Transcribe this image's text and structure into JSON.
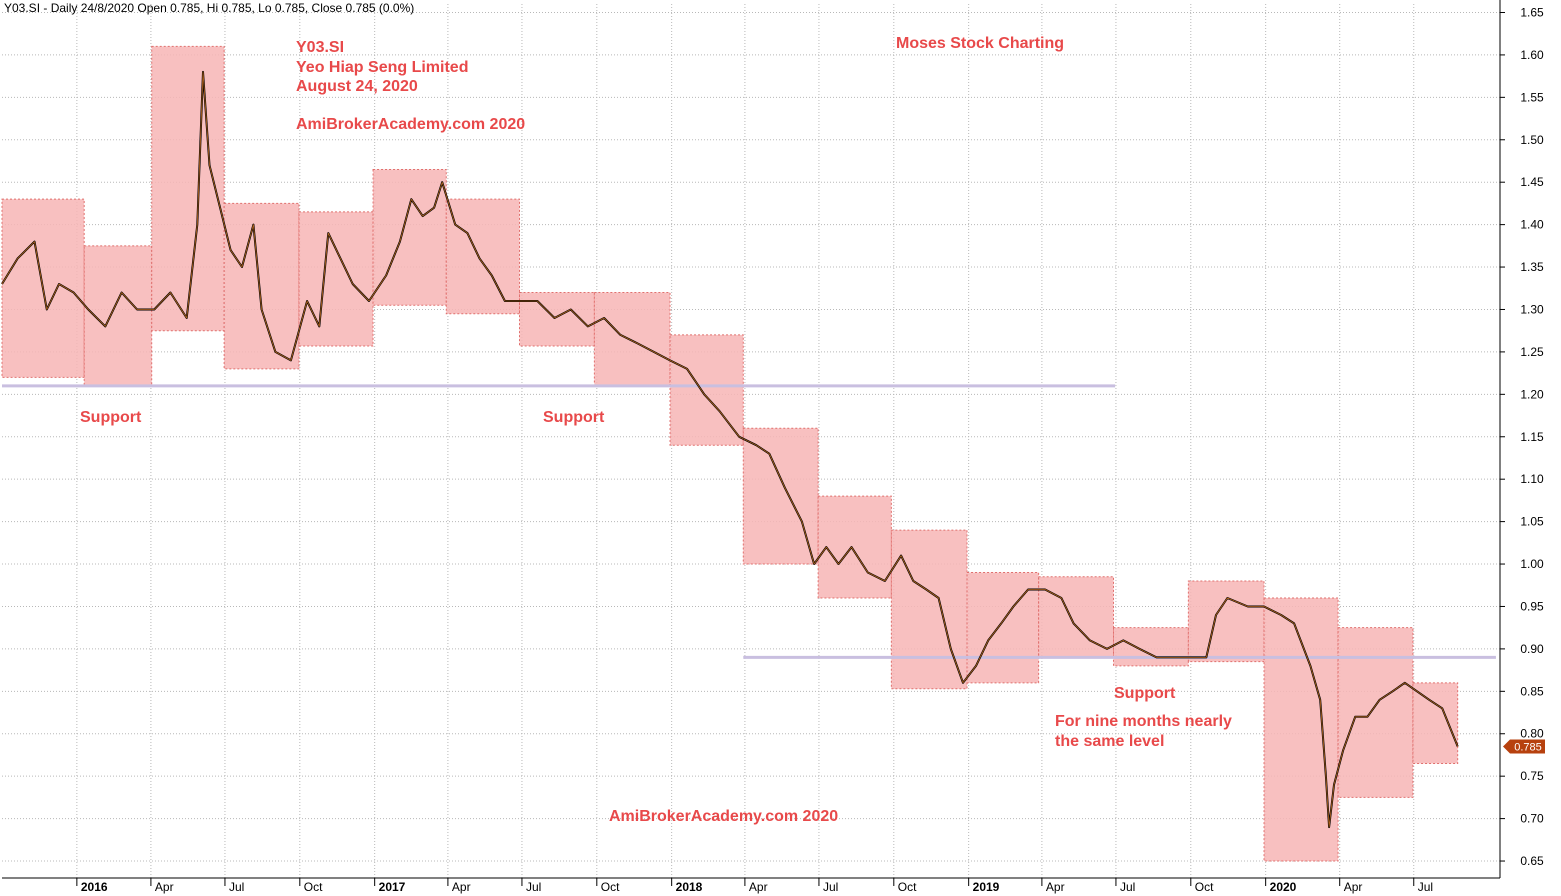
{
  "header": "Y03.SI - Daily 24/8/2020 Open 0.785, Hi 0.785, Lo 0.785, Close 0.785 (0.0%)",
  "annotations": {
    "symbol": "Y03.SI",
    "company": "Yeo Hiap Seng Limited",
    "date": "August 24, 2020",
    "site_top": "AmiBrokerAcademy.com  2020",
    "brand": "Moses Stock Charting",
    "support_1": "Support",
    "support_2": "Support",
    "support_3": "Support",
    "note_line1": "For nine months nearly",
    "note_line2": "the same level",
    "site_bottom": "AmiBrokerAcademy.com  2020"
  },
  "last_price_label": "0.785",
  "colors": {
    "box_fill": "#f7b5b5",
    "box_border": "#e0706e",
    "support_line": "#c9bfe0",
    "grid": "#b8b8b8",
    "annotation": "#e8494a",
    "price_tag": "#b7410e",
    "candle_up": "#b5651d",
    "candle_down": "#000000"
  },
  "chart_data": {
    "type": "line",
    "symbol": "Y03.SI",
    "y_axis": {
      "position": "right",
      "range": [
        0.63,
        1.66
      ],
      "ticks": [
        "1.65",
        "1.60",
        "1.55",
        "1.50",
        "1.45",
        "1.40",
        "1.35",
        "1.30",
        "1.25",
        "1.20",
        "1.15",
        "1.10",
        "1.05",
        "1.00",
        "0.95",
        "0.90",
        "0.85",
        "0.80",
        "0.75",
        "0.70",
        "0.65"
      ]
    },
    "x_axis": {
      "range": [
        "2015-10-01",
        "2020-10-15"
      ],
      "year_ticks": [
        {
          "date": "2016-01-01",
          "label": "2016"
        },
        {
          "date": "2017-01-01",
          "label": "2017"
        },
        {
          "date": "2018-01-01",
          "label": "2018"
        },
        {
          "date": "2019-01-01",
          "label": "2019"
        },
        {
          "date": "2020-01-01",
          "label": "2020"
        }
      ],
      "month_ticks": [
        {
          "date": "2016-04-01",
          "label": "Apr"
        },
        {
          "date": "2016-07-01",
          "label": "Jul"
        },
        {
          "date": "2016-10-01",
          "label": "Oct"
        },
        {
          "date": "2017-04-01",
          "label": "Apr"
        },
        {
          "date": "2017-07-01",
          "label": "Jul"
        },
        {
          "date": "2017-10-01",
          "label": "Oct"
        },
        {
          "date": "2018-04-01",
          "label": "Apr"
        },
        {
          "date": "2018-07-01",
          "label": "Jul"
        },
        {
          "date": "2018-10-01",
          "label": "Oct"
        },
        {
          "date": "2019-04-01",
          "label": "Apr"
        },
        {
          "date": "2019-07-01",
          "label": "Jul"
        },
        {
          "date": "2019-10-01",
          "label": "Oct"
        },
        {
          "date": "2020-04-01",
          "label": "Apr"
        },
        {
          "date": "2020-07-01",
          "label": "Jul"
        }
      ]
    },
    "grid": true,
    "price_series": [
      [
        "2015-10-01",
        1.33
      ],
      [
        "2015-10-20",
        1.36
      ],
      [
        "2015-11-10",
        1.38
      ],
      [
        "2015-11-25",
        1.3
      ],
      [
        "2015-12-10",
        1.33
      ],
      [
        "2015-12-28",
        1.32
      ],
      [
        "2016-01-15",
        1.3
      ],
      [
        "2016-02-05",
        1.28
      ],
      [
        "2016-02-25",
        1.32
      ],
      [
        "2016-03-15",
        1.3
      ],
      [
        "2016-04-05",
        1.3
      ],
      [
        "2016-04-25",
        1.32
      ],
      [
        "2016-05-15",
        1.29
      ],
      [
        "2016-05-28",
        1.4
      ],
      [
        "2016-06-04",
        1.58
      ],
      [
        "2016-06-12",
        1.47
      ],
      [
        "2016-06-25",
        1.42
      ],
      [
        "2016-07-08",
        1.37
      ],
      [
        "2016-07-22",
        1.35
      ],
      [
        "2016-08-05",
        1.4
      ],
      [
        "2016-08-15",
        1.3
      ],
      [
        "2016-09-01",
        1.25
      ],
      [
        "2016-09-20",
        1.24
      ],
      [
        "2016-10-10",
        1.31
      ],
      [
        "2016-10-25",
        1.28
      ],
      [
        "2016-11-05",
        1.39
      ],
      [
        "2016-11-20",
        1.36
      ],
      [
        "2016-12-05",
        1.33
      ],
      [
        "2016-12-25",
        1.31
      ],
      [
        "2017-01-15",
        1.34
      ],
      [
        "2017-02-01",
        1.38
      ],
      [
        "2017-02-15",
        1.43
      ],
      [
        "2017-03-01",
        1.41
      ],
      [
        "2017-03-15",
        1.42
      ],
      [
        "2017-03-25",
        1.45
      ],
      [
        "2017-04-10",
        1.4
      ],
      [
        "2017-04-25",
        1.39
      ],
      [
        "2017-05-10",
        1.36
      ],
      [
        "2017-05-25",
        1.34
      ],
      [
        "2017-06-10",
        1.31
      ],
      [
        "2017-06-28",
        1.31
      ],
      [
        "2017-07-20",
        1.31
      ],
      [
        "2017-08-10",
        1.29
      ],
      [
        "2017-08-30",
        1.3
      ],
      [
        "2017-09-20",
        1.28
      ],
      [
        "2017-10-10",
        1.29
      ],
      [
        "2017-10-30",
        1.27
      ],
      [
        "2017-11-20",
        1.26
      ],
      [
        "2017-12-10",
        1.25
      ],
      [
        "2017-12-30",
        1.24
      ],
      [
        "2018-01-20",
        1.23
      ],
      [
        "2018-02-10",
        1.2
      ],
      [
        "2018-03-01",
        1.18
      ],
      [
        "2018-03-25",
        1.15
      ],
      [
        "2018-04-15",
        1.14
      ],
      [
        "2018-05-01",
        1.13
      ],
      [
        "2018-05-20",
        1.09
      ],
      [
        "2018-06-10",
        1.05
      ],
      [
        "2018-06-25",
        1.0
      ],
      [
        "2018-07-10",
        1.02
      ],
      [
        "2018-07-25",
        1.0
      ],
      [
        "2018-08-10",
        1.02
      ],
      [
        "2018-08-30",
        0.99
      ],
      [
        "2018-09-20",
        0.98
      ],
      [
        "2018-10-10",
        1.01
      ],
      [
        "2018-10-25",
        0.98
      ],
      [
        "2018-11-10",
        0.97
      ],
      [
        "2018-11-25",
        0.96
      ],
      [
        "2018-12-10",
        0.9
      ],
      [
        "2018-12-25",
        0.86
      ],
      [
        "2019-01-10",
        0.88
      ],
      [
        "2019-01-25",
        0.91
      ],
      [
        "2019-02-10",
        0.93
      ],
      [
        "2019-02-25",
        0.95
      ],
      [
        "2019-03-15",
        0.97
      ],
      [
        "2019-04-05",
        0.97
      ],
      [
        "2019-04-25",
        0.96
      ],
      [
        "2019-05-10",
        0.93
      ],
      [
        "2019-05-30",
        0.91
      ],
      [
        "2019-06-20",
        0.9
      ],
      [
        "2019-07-10",
        0.91
      ],
      [
        "2019-07-30",
        0.9
      ],
      [
        "2019-08-20",
        0.89
      ],
      [
        "2019-09-10",
        0.89
      ],
      [
        "2019-09-30",
        0.89
      ],
      [
        "2019-10-20",
        0.89
      ],
      [
        "2019-11-01",
        0.94
      ],
      [
        "2019-11-15",
        0.96
      ],
      [
        "2019-12-10",
        0.95
      ],
      [
        "2019-12-30",
        0.95
      ],
      [
        "2020-01-20",
        0.94
      ],
      [
        "2020-02-05",
        0.93
      ],
      [
        "2020-02-25",
        0.88
      ],
      [
        "2020-03-08",
        0.84
      ],
      [
        "2020-03-15",
        0.75
      ],
      [
        "2020-03-19",
        0.69
      ],
      [
        "2020-03-25",
        0.74
      ],
      [
        "2020-04-05",
        0.78
      ],
      [
        "2020-04-20",
        0.82
      ],
      [
        "2020-05-05",
        0.82
      ],
      [
        "2020-05-20",
        0.84
      ],
      [
        "2020-06-05",
        0.85
      ],
      [
        "2020-06-20",
        0.86
      ],
      [
        "2020-07-05",
        0.85
      ],
      [
        "2020-07-20",
        0.84
      ],
      [
        "2020-08-05",
        0.83
      ],
      [
        "2020-08-24",
        0.785
      ]
    ],
    "range_boxes": [
      {
        "start": "2015-10-01",
        "end": "2016-01-10",
        "high": 1.43,
        "low": 1.22
      },
      {
        "start": "2016-01-10",
        "end": "2016-04-02",
        "high": 1.375,
        "low": 1.21
      },
      {
        "start": "2016-04-02",
        "end": "2016-06-30",
        "high": 1.61,
        "low": 1.275
      },
      {
        "start": "2016-06-30",
        "end": "2016-09-30",
        "high": 1.425,
        "low": 1.23
      },
      {
        "start": "2016-09-30",
        "end": "2016-12-30",
        "high": 1.415,
        "low": 1.257
      },
      {
        "start": "2016-12-30",
        "end": "2017-03-30",
        "high": 1.465,
        "low": 1.305
      },
      {
        "start": "2017-03-30",
        "end": "2017-06-28",
        "high": 1.43,
        "low": 1.295
      },
      {
        "start": "2017-06-28",
        "end": "2017-09-28",
        "high": 1.32,
        "low": 1.257
      },
      {
        "start": "2017-09-28",
        "end": "2017-12-30",
        "high": 1.32,
        "low": 1.21
      },
      {
        "start": "2017-12-30",
        "end": "2018-03-30",
        "high": 1.27,
        "low": 1.14
      },
      {
        "start": "2018-03-30",
        "end": "2018-06-30",
        "high": 1.16,
        "low": 1.0
      },
      {
        "start": "2018-06-30",
        "end": "2018-09-28",
        "high": 1.08,
        "low": 0.96
      },
      {
        "start": "2018-09-28",
        "end": "2018-12-30",
        "high": 1.04,
        "low": 0.853
      },
      {
        "start": "2018-12-30",
        "end": "2019-03-28",
        "high": 0.99,
        "low": 0.86
      },
      {
        "start": "2019-03-28",
        "end": "2019-06-28",
        "high": 0.985,
        "low": 0.89
      },
      {
        "start": "2019-06-28",
        "end": "2019-09-28",
        "high": 0.925,
        "low": 0.88
      },
      {
        "start": "2019-09-28",
        "end": "2019-12-30",
        "high": 0.98,
        "low": 0.885
      },
      {
        "start": "2019-12-30",
        "end": "2020-03-30",
        "high": 0.96,
        "low": 0.65
      },
      {
        "start": "2020-03-30",
        "end": "2020-06-30",
        "high": 0.925,
        "low": 0.725
      },
      {
        "start": "2020-06-30",
        "end": "2020-08-24",
        "high": 0.86,
        "low": 0.765
      }
    ],
    "support_lines": [
      {
        "level": 1.21,
        "start": "2015-10-01",
        "end": "2019-06-30"
      },
      {
        "level": 0.89,
        "start": "2018-03-30",
        "end": "2020-10-10"
      }
    ],
    "last_price": 0.785
  }
}
